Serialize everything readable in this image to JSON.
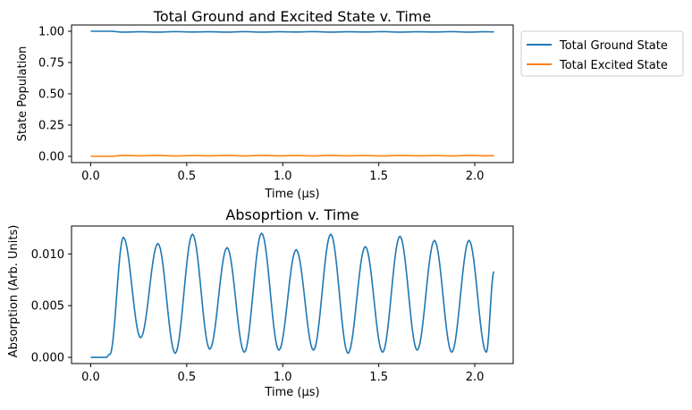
{
  "figure": {
    "background": "#ffffff"
  },
  "chart_data": [
    {
      "type": "line",
      "title": "Total Ground and Excited State v. Time",
      "xlabel": "Time (μs)",
      "ylabel": "State Population",
      "xlim": [
        -0.1,
        2.2
      ],
      "ylim": [
        -0.05,
        1.05
      ],
      "xticks": [
        0.0,
        0.5,
        1.0,
        1.5,
        2.0
      ],
      "xtick_labels": [
        "0.0",
        "0.5",
        "1.0",
        "1.5",
        "2.0"
      ],
      "yticks": [
        0.0,
        0.25,
        0.5,
        0.75,
        1.0
      ],
      "ytick_labels": [
        "0.00",
        "0.25",
        "0.50",
        "0.75",
        "1.00"
      ],
      "grid": false,
      "legend_placement": "outside-right-top",
      "series": [
        {
          "name": "Total Ground State",
          "color": "#1f77b4",
          "x": [
            0.0,
            0.1,
            0.17,
            0.26,
            0.35,
            0.44,
            0.53,
            0.62,
            0.71,
            0.8,
            0.89,
            0.98,
            1.07,
            1.16,
            1.25,
            1.34,
            1.43,
            1.52,
            1.61,
            1.7,
            1.79,
            1.88,
            1.97,
            2.05,
            2.1
          ],
          "y": [
            1.0,
            1.0,
            0.993,
            0.996,
            0.993,
            0.997,
            0.994,
            0.996,
            0.993,
            0.997,
            0.993,
            0.996,
            0.994,
            0.997,
            0.993,
            0.996,
            0.994,
            0.997,
            0.993,
            0.996,
            0.994,
            0.997,
            0.993,
            0.996,
            0.995
          ]
        },
        {
          "name": "Total Excited State",
          "color": "#ff7f0e",
          "x": [
            0.0,
            0.1,
            0.17,
            0.26,
            0.35,
            0.44,
            0.53,
            0.62,
            0.71,
            0.8,
            0.89,
            0.98,
            1.07,
            1.16,
            1.25,
            1.34,
            1.43,
            1.52,
            1.61,
            1.7,
            1.79,
            1.88,
            1.97,
            2.05,
            2.1
          ],
          "y": [
            0.0,
            0.0,
            0.007,
            0.004,
            0.007,
            0.003,
            0.006,
            0.004,
            0.007,
            0.003,
            0.007,
            0.004,
            0.006,
            0.003,
            0.007,
            0.004,
            0.006,
            0.003,
            0.007,
            0.004,
            0.006,
            0.003,
            0.007,
            0.004,
            0.005
          ]
        }
      ]
    },
    {
      "type": "line",
      "title": "Absoprtion v. Time",
      "xlabel": "Time (μs)",
      "ylabel": "Absorption (Arb. Units)",
      "xlim": [
        -0.1,
        2.2
      ],
      "ylim": [
        -0.0006,
        0.0127
      ],
      "xticks": [
        0.0,
        0.5,
        1.0,
        1.5,
        2.0
      ],
      "xtick_labels": [
        "0.0",
        "0.5",
        "1.0",
        "1.5",
        "2.0"
      ],
      "yticks": [
        0.0,
        0.005,
        0.01
      ],
      "ytick_labels": [
        "0.000",
        "0.005",
        "0.010"
      ],
      "grid": false,
      "series": [
        {
          "color": "#1f77b4",
          "x": [
            0.0,
            0.08,
            0.1,
            0.17,
            0.26,
            0.35,
            0.44,
            0.53,
            0.62,
            0.71,
            0.8,
            0.89,
            0.98,
            1.07,
            1.16,
            1.25,
            1.34,
            1.43,
            1.52,
            1.61,
            1.7,
            1.79,
            1.88,
            1.97,
            2.06,
            2.1
          ],
          "y": [
            0.0,
            0.0,
            0.0003,
            0.0116,
            0.0019,
            0.011,
            0.0004,
            0.0119,
            0.0008,
            0.0106,
            0.0005,
            0.012,
            0.0007,
            0.0104,
            0.0007,
            0.0119,
            0.0004,
            0.0107,
            0.0005,
            0.0117,
            0.0007,
            0.0113,
            0.0005,
            0.0113,
            0.0005,
            0.0083
          ]
        }
      ]
    }
  ]
}
